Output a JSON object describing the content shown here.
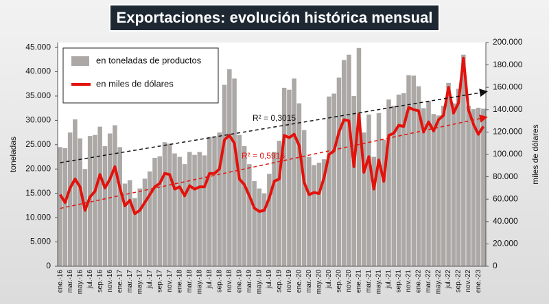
{
  "chart_data": {
    "type": "bar",
    "title": "Exportaciones: evolución histórica mensual",
    "ylabel": "toneladas",
    "y2label": "miles de dólares",
    "legend": "upper left",
    "categories": [
      "ene.-16",
      null,
      "mar.-16",
      null,
      "may.-16",
      null,
      "jul.-16",
      null,
      "sep.-16",
      null,
      "nov.-16",
      null,
      "ene.-17",
      null,
      "mar.-17",
      null,
      "may.-17",
      null,
      "jul.-17",
      null,
      "sep.-17",
      null,
      "nov.-17",
      null,
      "ene.-18",
      null,
      "mar.-18",
      null,
      "may.-18",
      null,
      "jul.-18",
      null,
      "sep.-18",
      null,
      "nov.-18",
      null,
      "ene.-19",
      null,
      "mar.-19",
      null,
      "may.-19",
      null,
      "jul.-19",
      null,
      "sep.-19",
      null,
      "nov.-19",
      null,
      "ene.-20",
      null,
      "mar.-20",
      null,
      "may.-20",
      null,
      "jul.-20",
      null,
      "sep.-20",
      null,
      "nov.-20",
      null,
      "ene.-21",
      null,
      "mar.-21",
      null,
      "may.-21",
      null,
      "jul.-21",
      null,
      "sep.-21",
      null,
      "nov.-21",
      null,
      "ene.-22",
      null,
      "mar.-22",
      null,
      "may.-22",
      null,
      "jul.-22",
      null,
      "sep.-22",
      null,
      "nov.-22",
      null,
      "ene.-23",
      null
    ],
    "series": [
      {
        "name": "en toneladas de productos",
        "type": "bar",
        "color": "#aba8a6",
        "trendline": {
          "color": "#111111",
          "label": "R² = 0,3015"
        },
        "values": [
          24500,
          24300,
          27500,
          30200,
          26300,
          20000,
          26800,
          27000,
          28700,
          24700,
          27300,
          29000,
          24500,
          17000,
          17700,
          14000,
          16000,
          18000,
          19500,
          22300,
          22600,
          25500,
          25200,
          23200,
          22500,
          21000,
          23500,
          22900,
          23500,
          22800,
          26600,
          26700,
          27500,
          37300,
          40500,
          38600,
          27000,
          24700,
          21000,
          17500,
          16000,
          15000,
          19000,
          23500,
          25800,
          36700,
          36300,
          38600,
          33500,
          28000,
          22500,
          20800,
          21300,
          22000,
          34900,
          35500,
          38800,
          42400,
          43500,
          35000,
          44900,
          27500,
          31200,
          22500,
          31500,
          26000,
          34300,
          33000,
          35300,
          35600,
          39300,
          39200,
          37000,
          32500,
          34000,
          31300,
          31000,
          33000,
          37700,
          33500,
          36500,
          43500,
          33000,
          32300,
          32600,
          32400
        ]
      },
      {
        "name": "en miles de dólares",
        "type": "line",
        "axis": "y2",
        "color": "#e3120b",
        "trendline": {
          "color": "#e3120b",
          "label": "R² = 0,5916"
        },
        "values": [
          64000,
          57000,
          70000,
          78000,
          71000,
          50000,
          62000,
          67000,
          82000,
          70000,
          78000,
          89000,
          70000,
          54000,
          59000,
          47000,
          50000,
          57000,
          64000,
          71000,
          74000,
          83000,
          82000,
          69000,
          71000,
          63000,
          72000,
          69000,
          71000,
          71000,
          83000,
          83000,
          87000,
          113000,
          117000,
          110000,
          78000,
          73000,
          63000,
          52000,
          49000,
          50000,
          61000,
          76000,
          78000,
          117000,
          115000,
          118000,
          108000,
          75000,
          64000,
          66000,
          65000,
          79000,
          100000,
          103000,
          120000,
          131000,
          130000,
          89000,
          136000,
          84000,
          98000,
          69000,
          95000,
          76000,
          117000,
          119000,
          126000,
          125000,
          142000,
          140000,
          139000,
          120000,
          129000,
          121000,
          131000,
          135000,
          160000,
          137000,
          146000,
          186000,
          140000,
          127000,
          118000,
          125000
        ]
      }
    ],
    "ylim": [
      0,
      46000
    ],
    "yticks": [
      0,
      {
        "value": 5000,
        "label": "5.000"
      },
      {
        "value": 10000,
        "label": "10.000"
      },
      {
        "value": 15000,
        "label": "15.000"
      },
      {
        "value": 20000,
        "label": "20.000"
      },
      {
        "value": 25000,
        "label": "25.000"
      },
      {
        "value": 30000,
        "label": "30.000"
      },
      {
        "value": 35000,
        "label": "35.000"
      },
      {
        "value": 40000,
        "label": "40.000"
      },
      {
        "value": 45000,
        "label": "45.000"
      }
    ],
    "y2lim": [
      0,
      200000
    ],
    "y2ticks": [
      0,
      {
        "value": 20000,
        "label": "20.000"
      },
      {
        "value": 40000,
        "label": "40.000"
      },
      {
        "value": 60000,
        "label": "60.000"
      },
      {
        "value": 80000,
        "label": "80.000"
      },
      {
        "value": 100000,
        "label": "100.000"
      },
      {
        "value": 120000,
        "label": "120.000"
      },
      {
        "value": 140000,
        "label": "140.000"
      },
      {
        "value": 160000,
        "label": "160.000"
      },
      {
        "value": 180000,
        "label": "180.000"
      },
      {
        "value": 200000,
        "label": "200.000"
      }
    ]
  }
}
